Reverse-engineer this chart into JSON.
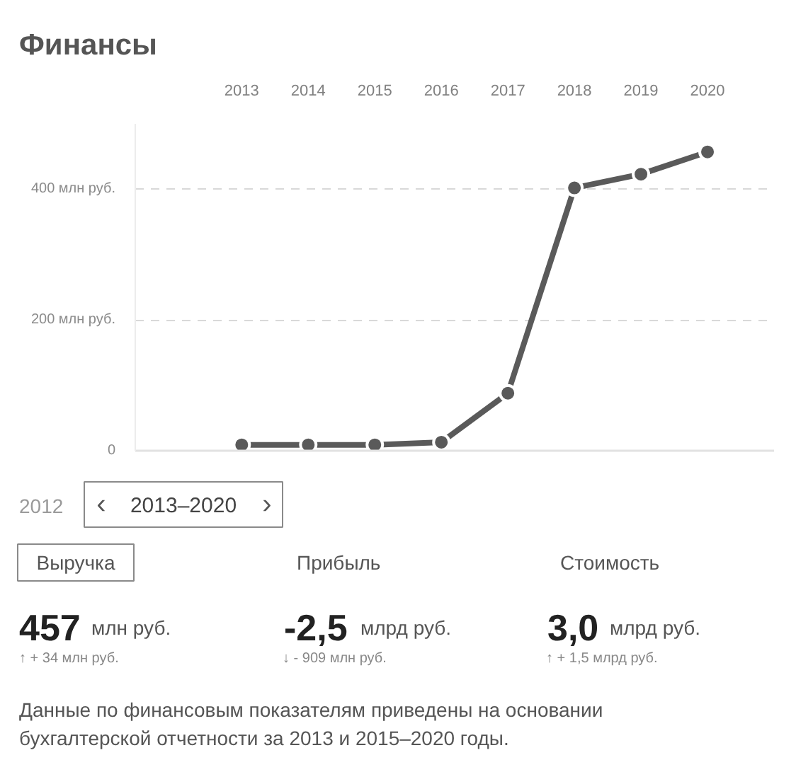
{
  "chart_data": [
    {
      "type": "line",
      "title": "Финансы",
      "x": [
        2013,
        2014,
        2015,
        2016,
        2017,
        2018,
        2019,
        2020
      ],
      "values": [
        9,
        9,
        9,
        13,
        88,
        402,
        423,
        457
      ],
      "color": "#5a5a5a",
      "xlim": [
        2011.4,
        2021
      ],
      "xticks": [
        2013,
        2014,
        2015,
        2016,
        2017,
        2018,
        2019,
        2020
      ],
      "ylim": [
        0,
        500
      ],
      "yticks": [
        0,
        {
          "value": 200,
          "label": "200 млн руб."
        },
        {
          "value": 400,
          "label": "400 млн руб."
        }
      ],
      "grid": "y",
      "marker": "circle",
      "line_style": "solid"
    },
    {
      "type": "other",
      "annotations": [
        "2012",
        "‹",
        "2013–2020",
        "›",
        "Выручка",
        "Прибыль",
        "Стоимость",
        "457",
        "млн руб.",
        "-2,5",
        "млрд руб.",
        "3,0",
        "млрд руб.",
        "↑ + 34 млн руб.",
        "↓ - 909 млн руб.",
        "↑ + 1,5 млрд руб.",
        "Данные по финансовым показателям приведены на основании бухгалтерской отчетности за 2013 и 2015–2020 годы."
      ]
    }
  ]
}
